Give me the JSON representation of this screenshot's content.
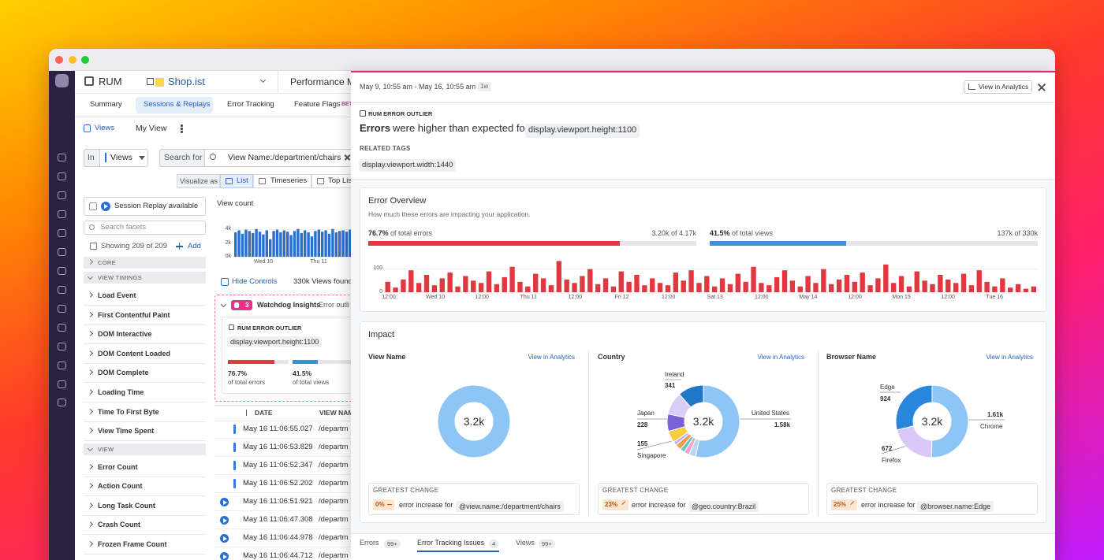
{
  "app_nav": {
    "product": "RUM",
    "app": "Shop.ist",
    "section": "Performance Mo"
  },
  "explorer": {
    "tabs": [
      "Summary",
      "Sessions & Replays",
      "Error Tracking",
      "Feature Flags"
    ],
    "beta": "BET",
    "views_link": "Views",
    "my_view": "My View",
    "search": {
      "in": "In",
      "scope": "Views",
      "search_for": "Search for",
      "query": "View Name:/department/chairs"
    },
    "visualize": {
      "label": "Visualize as",
      "options": [
        "List",
        "Timeseries",
        "Top Lis"
      ]
    },
    "facets": {
      "session_replay": "Session Replay available",
      "search_placeholder": "Search facets",
      "showing": "Showing 209 of 209",
      "add": "Add",
      "groups": [
        {
          "title": "CORE",
          "items": []
        },
        {
          "title": "VIEW TIMINGS",
          "items": [
            "Load Event",
            "First Contentful Paint",
            "DOM Interactive",
            "DOM Content Loaded",
            "DOM Complete",
            "Loading Time",
            "Time To First Byte",
            "View Time Spent"
          ]
        },
        {
          "title": "VIEW",
          "items": [
            "Error Count",
            "Action Count",
            "Long Task Count",
            "Crash Count",
            "Frozen Frame Count"
          ]
        }
      ]
    },
    "hide_controls": "Hide Controls",
    "results": "330k Views found"
  },
  "view_count_chart": {
    "type": "bar",
    "title": "View count",
    "ylim": [
      0,
      5000
    ],
    "yticks": [
      {
        "value": 0,
        "label": "0k"
      },
      {
        "value": 2000,
        "label": "2k"
      },
      {
        "value": 4000,
        "label": "4k"
      }
    ],
    "x_labels": [
      "Wed 10",
      "Thu 11"
    ],
    "values": [
      3600,
      3900,
      3400,
      4000,
      3800,
      3500,
      4100,
      3700,
      3300,
      3900,
      2600,
      3800,
      4000,
      3600,
      3900,
      3700,
      3200,
      3800,
      4100,
      3500,
      3900,
      3600,
      3000,
      3800,
      4000,
      3700,
      3900,
      3400,
      4100,
      3600,
      3800,
      3900,
      3700,
      4000
    ],
    "color": "#2a6fc9"
  },
  "watchdog": {
    "count": 3,
    "title": "Watchdog Insights",
    "preview": "Error outli",
    "card": {
      "kind": "RUM ERROR OUTLIER",
      "tag": "display.viewport.height:1100",
      "errors": {
        "share": {
          "value": 76.7,
          "label": "76.7%"
        },
        "caption": "of total errors",
        "color": "#e0383e"
      },
      "views": {
        "share": {
          "value": 41.5,
          "label": "41.5%"
        },
        "caption": "of total views",
        "color": "#3b8fe0"
      }
    }
  },
  "table": {
    "columns": [
      "DATE",
      "VIEW NAM"
    ],
    "rows": [
      [
        "May 16 11:06:55.027",
        "/departm"
      ],
      [
        "May 16 11:06:53.829",
        "/departm"
      ],
      [
        "May 16 11:06:52.347",
        "/departm"
      ],
      [
        "May 16 11:06:52.202",
        "/departm"
      ],
      [
        "May 16 11:06:51.921",
        "/departm"
      ],
      [
        "May 16 11:06:47.308",
        "/departm"
      ],
      [
        "May 16 11:06:44.978",
        "/departm"
      ],
      [
        "May 16 11:06:44.712",
        "/departm"
      ]
    ]
  },
  "outlier_panel": {
    "time_range": "May 9, 10:55 am - May 16, 10:55 am",
    "range_badge": "1w",
    "analytics_button": "View in Analytics",
    "kind": "RUM ERROR OUTLIER",
    "headline": {
      "strong": "Errors",
      "text": "were higher than expected for",
      "tag": "display.viewport.height:1100"
    },
    "related_tags_title": "RELATED TAGS",
    "related_tags": [
      "display.viewport.width:1440"
    ],
    "error_overview": {
      "title": "Error Overview",
      "subtitle": "How much these errors are impacting your application.",
      "errors": {
        "share": {
          "value": 76.7,
          "label": "76.7%"
        },
        "caption": "of total errors",
        "count": "3.20k of 4.17k",
        "color": "#e0383e"
      },
      "views": {
        "share": {
          "value": 41.5,
          "label": "41.5%"
        },
        "caption": "of total views",
        "count": "137k of 330k",
        "color": "#3b8fe0"
      },
      "histogram": {
        "type": "bar",
        "ylim": [
          0,
          150
        ],
        "yticks": [
          0,
          100
        ],
        "x_labels": [
          "12:00",
          "Wed 10",
          "12:00",
          "Thu 11",
          "12:00",
          "Fri 12",
          "12:00",
          "Sat 13",
          "12:00",
          "May 14",
          "12:00",
          "Mon 15",
          "12:00",
          "Tue 16"
        ],
        "values": [
          45,
          20,
          55,
          95,
          40,
          75,
          30,
          60,
          85,
          25,
          70,
          50,
          40,
          90,
          35,
          65,
          110,
          45,
          25,
          80,
          60,
          30,
          135,
          55,
          40,
          70,
          100,
          35,
          60,
          25,
          90,
          45,
          75,
          30,
          60,
          40,
          30,
          85,
          50,
          95,
          40,
          70,
          25,
          60,
          35,
          80,
          45,
          110,
          40,
          30,
          65,
          95,
          50,
          25,
          70,
          40,
          100,
          35,
          55,
          75,
          45,
          85,
          30,
          60,
          120,
          40,
          70,
          25,
          90,
          50,
          35,
          75,
          55,
          40,
          80,
          30,
          95,
          45,
          25,
          60,
          20,
          35,
          15,
          25
        ],
        "color": "#e0383e"
      }
    },
    "impact": {
      "title": "Impact",
      "columns": [
        {
          "title": "View Name",
          "link": "View in Analytics",
          "center_label": "3.2k",
          "segments": {
            "labels": [
              null
            ],
            "values": [
              3200
            ],
            "value_labels": [
              null
            ],
            "colors": [
              "#8ec5f7"
            ]
          },
          "greatest_change": {
            "title": "GREATEST CHANGE",
            "change": "0%",
            "text": "error increase for",
            "tag": "@view.name:/department/chairs"
          }
        },
        {
          "title": "Country",
          "link": "View in Analytics",
          "center_label": "3.2k",
          "segments": {
            "labels": [
              "United States",
              null,
              null,
              null,
              null,
              null,
              "Singapore",
              "Japan",
              null,
              "Ireland"
            ],
            "values": [
              1580,
              90,
              70,
              60,
              80,
              50,
              155,
              228,
              300,
              341
            ],
            "value_labels": [
              "1.58k",
              null,
              null,
              null,
              null,
              null,
              "155",
              "228",
              null,
              "341"
            ],
            "colors": [
              "#8ec5f7",
              "#b9d7f7",
              "#f4a6c8",
              "#5fc7c0",
              "#f59b4c",
              "#c5b4f0",
              "#f7cc3d",
              "#7b5fd6",
              "#d9ccf5",
              "#1f77c9"
            ]
          },
          "greatest_change": {
            "title": "GREATEST CHANGE",
            "change": "23%",
            "text": "error increase for",
            "tag": "@geo.country:Brazil"
          }
        },
        {
          "title": "Browser Name",
          "link": "View in Analytics",
          "center_label": "3.2k",
          "segments": {
            "labels": [
              "Chrome",
              "Firefox",
              "Edge"
            ],
            "values": [
              1610,
              672,
              924
            ],
            "value_labels": [
              "1.61k",
              "672",
              "924"
            ],
            "colors": [
              "#8ec5f7",
              "#d9c8f7",
              "#2a86dc"
            ]
          },
          "greatest_change": {
            "title": "GREATEST CHANGE",
            "change": "25%",
            "text": "error increase for",
            "tag": "@browser.name:Edge"
          }
        }
      ]
    },
    "bottom_tabs": [
      {
        "label": "Errors",
        "badge": "99+"
      },
      {
        "label": "Error Tracking Issues",
        "badge": 4
      },
      {
        "label": "Views",
        "badge": "99+"
      }
    ]
  }
}
